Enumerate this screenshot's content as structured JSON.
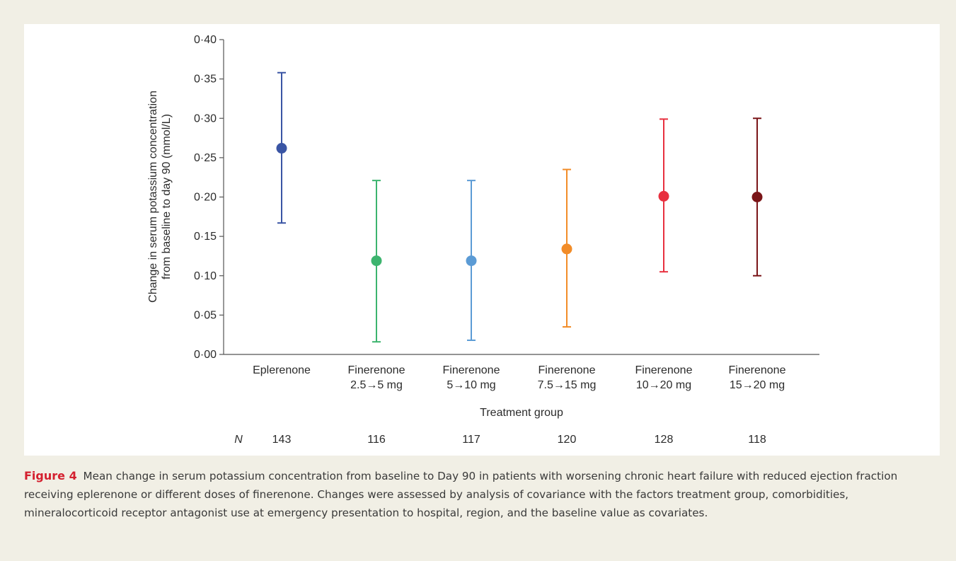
{
  "figure": {
    "label": "Figure 4",
    "caption": "Mean change in serum potassium concentration from baseline to Day 90 in patients with worsening chronic heart failure with reduced ejection fraction receiving eplerenone or different doses of finerenone. Changes were assessed by analysis of covariance with the factors treatment group, comorbidities, mineralocorticoid receptor antagonist use at emergency presentation to hospital, region, and the baseline value as covariates."
  },
  "chart_data": {
    "type": "scatter",
    "title": "",
    "xlabel": "Treatment group",
    "ylabel": [
      "Change in serum potassium concentration",
      "from baseline to day 90 (mmol/L)"
    ],
    "ylim": [
      0.0,
      0.4
    ],
    "yticks": [
      "0·00",
      "0·05",
      "0·10",
      "0·15",
      "0·20",
      "0·25",
      "0·30",
      "0·35",
      "0·40"
    ],
    "grid": false,
    "n_label": "N",
    "categories": [
      {
        "lines": [
          "Eplerenone"
        ],
        "mean": 0.262,
        "lower": 0.167,
        "upper": 0.358,
        "n": "143",
        "color": "#3a55a4"
      },
      {
        "lines": [
          "Finerenone",
          "2.5→5 mg"
        ],
        "mean": 0.119,
        "lower": 0.016,
        "upper": 0.221,
        "n": "116",
        "color": "#3cb46e"
      },
      {
        "lines": [
          "Finerenone",
          "5→10 mg"
        ],
        "mean": 0.119,
        "lower": 0.018,
        "upper": 0.221,
        "n": "117",
        "color": "#5b9bd5"
      },
      {
        "lines": [
          "Finerenone",
          "7.5→15 mg"
        ],
        "mean": 0.134,
        "lower": 0.035,
        "upper": 0.235,
        "n": "120",
        "color": "#f28c28"
      },
      {
        "lines": [
          "Finerenone",
          "10→20 mg"
        ],
        "mean": 0.201,
        "lower": 0.105,
        "upper": 0.299,
        "n": "128",
        "color": "#e8303f"
      },
      {
        "lines": [
          "Finerenone",
          "15→20 mg"
        ],
        "mean": 0.2,
        "lower": 0.1,
        "upper": 0.3,
        "n": "118",
        "color": "#7a1518"
      }
    ]
  }
}
